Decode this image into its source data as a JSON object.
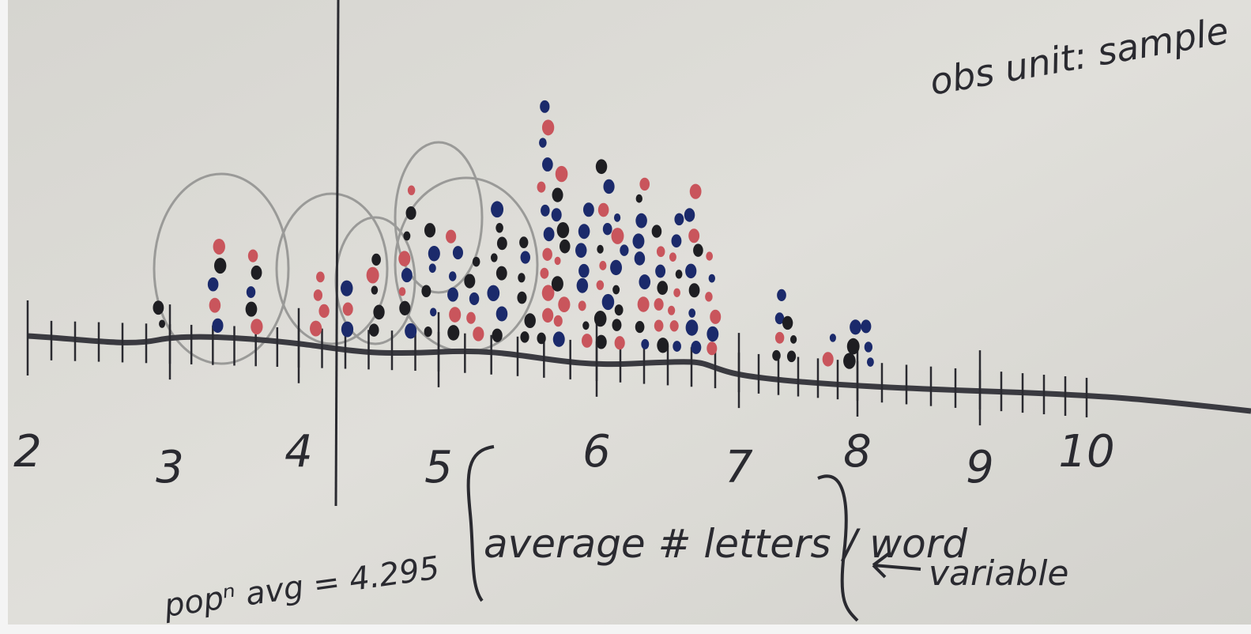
{
  "annotations": {
    "observational_unit": "obs unit: sample",
    "population_average": "popⁿ avg = 4.295",
    "variable_name": "average # letters / word",
    "variable_label": "variable"
  },
  "axis": {
    "labels": [
      "2",
      "3",
      "4",
      "5",
      "6",
      "7",
      "8",
      "9",
      "10"
    ]
  }
}
